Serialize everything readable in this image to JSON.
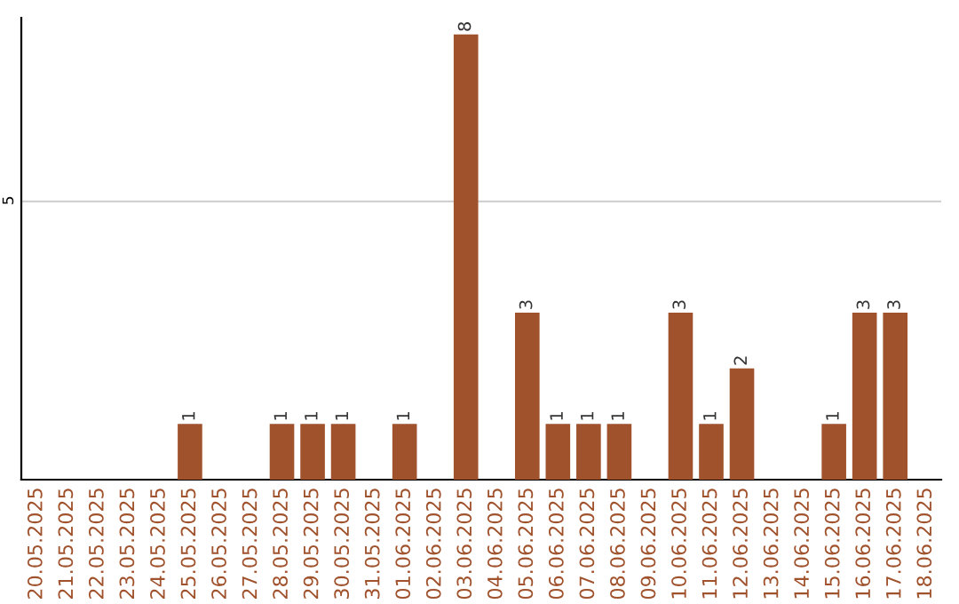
{
  "chart_data": {
    "type": "bar",
    "categories": [
      "20.05.2025",
      "21.05.2025",
      "22.05.2025",
      "23.05.2025",
      "24.05.2025",
      "25.05.2025",
      "26.05.2025",
      "27.05.2025",
      "28.05.2025",
      "29.05.2025",
      "30.05.2025",
      "31.05.2025",
      "01.06.2025",
      "02.06.2025",
      "03.06.2025",
      "04.06.2025",
      "05.06.2025",
      "06.06.2025",
      "07.06.2025",
      "08.06.2025",
      "09.06.2025",
      "10.06.2025",
      "11.06.2025",
      "12.06.2025",
      "13.06.2025",
      "14.06.2025",
      "15.06.2025",
      "16.06.2025",
      "17.06.2025",
      "18.06.2025"
    ],
    "series": [
      {
        "color": "#a0522d",
        "values": [
          0,
          0,
          0,
          0,
          0,
          1,
          0,
          0,
          1,
          1,
          1,
          0,
          1,
          0,
          8,
          0,
          3,
          1,
          1,
          1,
          0,
          3,
          1,
          2,
          0,
          0,
          1,
          3,
          3,
          0
        ],
        "value_labels": [
          null,
          null,
          null,
          null,
          null,
          "1",
          null,
          null,
          "1",
          "1",
          "1",
          null,
          "1",
          null,
          "8",
          null,
          "3",
          "1",
          "1",
          "1",
          null,
          "3",
          "1",
          "2",
          null,
          null,
          "1",
          "3",
          "3",
          null
        ]
      }
    ],
    "ylim": [
      0,
      8.3
    ],
    "yticks": [
      5
    ],
    "grid": "y",
    "legend": false
  }
}
